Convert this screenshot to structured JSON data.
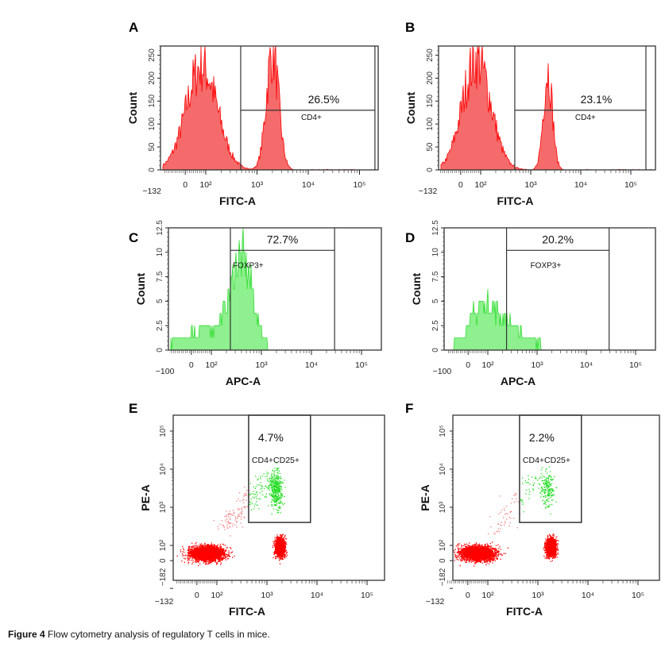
{
  "caption": {
    "label": "Figure 4",
    "text": " Flow cytometry analysis of regulatory T cells in mice."
  },
  "chart_data": [
    {
      "label": "A",
      "type": "histogram",
      "color": "#ff0000",
      "fill": "#f56b6b",
      "xlabel": "FITC-A",
      "ylabel": "Count",
      "x_ticks": [
        "−132",
        "0",
        "10²",
        "10³",
        "10⁴",
        "10⁵"
      ],
      "x_tick_values": [
        -132,
        0,
        100,
        1000,
        10000,
        100000
      ],
      "y_ticks": [
        "0",
        "50",
        "100",
        "150",
        "200",
        "250"
      ],
      "y_tick_values": [
        0,
        50,
        100,
        150,
        200,
        250
      ],
      "ylim": [
        0,
        270
      ],
      "gate": {
        "name": "CD4+",
        "percent": "26.5%",
        "x_range": [
          480,
          200000
        ],
        "marker_level": 130
      },
      "peaks": [
        {
          "center": 80,
          "height": 225
        },
        {
          "center": 2000,
          "height": 255
        }
      ]
    },
    {
      "label": "B",
      "type": "histogram",
      "color": "#ff0000",
      "fill": "#f56b6b",
      "xlabel": "FITC-A",
      "ylabel": "Count",
      "x_ticks": [
        "−132",
        "0",
        "10²",
        "10³",
        "10⁴",
        "10⁵"
      ],
      "x_tick_values": [
        -132,
        0,
        100,
        1000,
        10000,
        100000
      ],
      "y_ticks": [
        "0",
        "50",
        "100",
        "150",
        "200",
        "250"
      ],
      "y_tick_values": [
        0,
        50,
        100,
        150,
        200,
        250
      ],
      "ylim": [
        0,
        270
      ],
      "gate": {
        "name": "CD4+",
        "percent": "23.1%",
        "x_range": [
          480,
          200000
        ],
        "marker_level": 130
      },
      "peaks": [
        {
          "center": 80,
          "height": 240
        },
        {
          "center": 2200,
          "height": 215
        }
      ]
    },
    {
      "label": "C",
      "type": "histogram",
      "color": "#33dd33",
      "fill": "#8ef08e",
      "xlabel": "APC-A",
      "ylabel": "Count",
      "x_ticks": [
        "−100",
        "0",
        "10²",
        "10³",
        "10⁴",
        "10⁵"
      ],
      "x_tick_values": [
        -100,
        0,
        100,
        1000,
        10000,
        100000
      ],
      "y_ticks": [
        "0",
        "2.5",
        "5",
        "7.5",
        "10",
        "12.5"
      ],
      "y_tick_values": [
        0,
        2.5,
        5,
        7.5,
        10,
        12.5
      ],
      "ylim": [
        0,
        12.5
      ],
      "gate": {
        "name": "FOXP3+",
        "percent": "72.7%",
        "x_range": [
          240,
          29000
        ],
        "marker_level": 10.2
      },
      "peaks": [
        {
          "center": 60,
          "height": 2
        },
        {
          "center": 400,
          "height": 9
        }
      ]
    },
    {
      "label": "D",
      "type": "histogram",
      "color": "#33dd33",
      "fill": "#8ef08e",
      "xlabel": "APC-A",
      "ylabel": "Count",
      "x_ticks": [
        "−100",
        "0",
        "10²",
        "10³",
        "10⁴",
        "10⁵"
      ],
      "x_tick_values": [
        -100,
        0,
        100,
        1000,
        10000,
        100000
      ],
      "y_ticks": [
        "0",
        "2.5",
        "5",
        "7.5",
        "10",
        "12.5"
      ],
      "y_tick_values": [
        0,
        2.5,
        5,
        7.5,
        10,
        12.5
      ],
      "ylim": [
        0,
        12.5
      ],
      "gate": {
        "name": "FOXP3+",
        "percent": "20.2%",
        "x_range": [
          240,
          29000
        ],
        "marker_level": 10.2
      },
      "peaks": [
        {
          "center": 70,
          "height": 4
        },
        {
          "center": 300,
          "height": 2
        }
      ]
    },
    {
      "label": "E",
      "type": "scatter",
      "color": "#ff0000",
      "gate_color": "#22dd22",
      "xlabel": "FITC-A",
      "ylabel": "PE-A",
      "x_ticks": [
        "−132",
        "0",
        "10²",
        "10³",
        "10⁴",
        "10⁵"
      ],
      "x_tick_values": [
        -132,
        0,
        100,
        1000,
        10000,
        100000
      ],
      "y_ticks": [
        "−182",
        "0",
        "10²",
        "10³",
        "10⁴",
        "10⁵"
      ],
      "y_tick_values": [
        -182,
        0,
        100,
        1000,
        10000,
        100000
      ],
      "gate": {
        "name": "CD4+CD25+",
        "percent": "4.7%",
        "x_range": [
          430,
          7400
        ],
        "y_range": [
          400,
          250000
        ]
      },
      "populations": [
        {
          "x": 50,
          "y": 50
        },
        {
          "x": 1800,
          "y": 90
        },
        {
          "x": 1500,
          "y": 3000
        }
      ]
    },
    {
      "label": "F",
      "type": "scatter",
      "color": "#ff0000",
      "gate_color": "#22dd22",
      "xlabel": "FITC-A",
      "ylabel": "PE-A",
      "x_ticks": [
        "−132",
        "0",
        "10²",
        "10³",
        "10⁴",
        "10⁵"
      ],
      "x_tick_values": [
        -132,
        0,
        100,
        1000,
        10000,
        100000
      ],
      "y_ticks": [
        "−182",
        "0",
        "10²",
        "10³",
        "10⁴",
        "10⁵"
      ],
      "y_tick_values": [
        -182,
        0,
        100,
        1000,
        10000,
        100000
      ],
      "gate": {
        "name": "CD4+CD25+",
        "percent": "2.2%",
        "x_range": [
          430,
          7400
        ],
        "y_range": [
          400,
          250000
        ]
      },
      "populations": [
        {
          "x": 50,
          "y": 50
        },
        {
          "x": 1800,
          "y": 90
        },
        {
          "x": 1500,
          "y": 3000
        }
      ]
    }
  ]
}
